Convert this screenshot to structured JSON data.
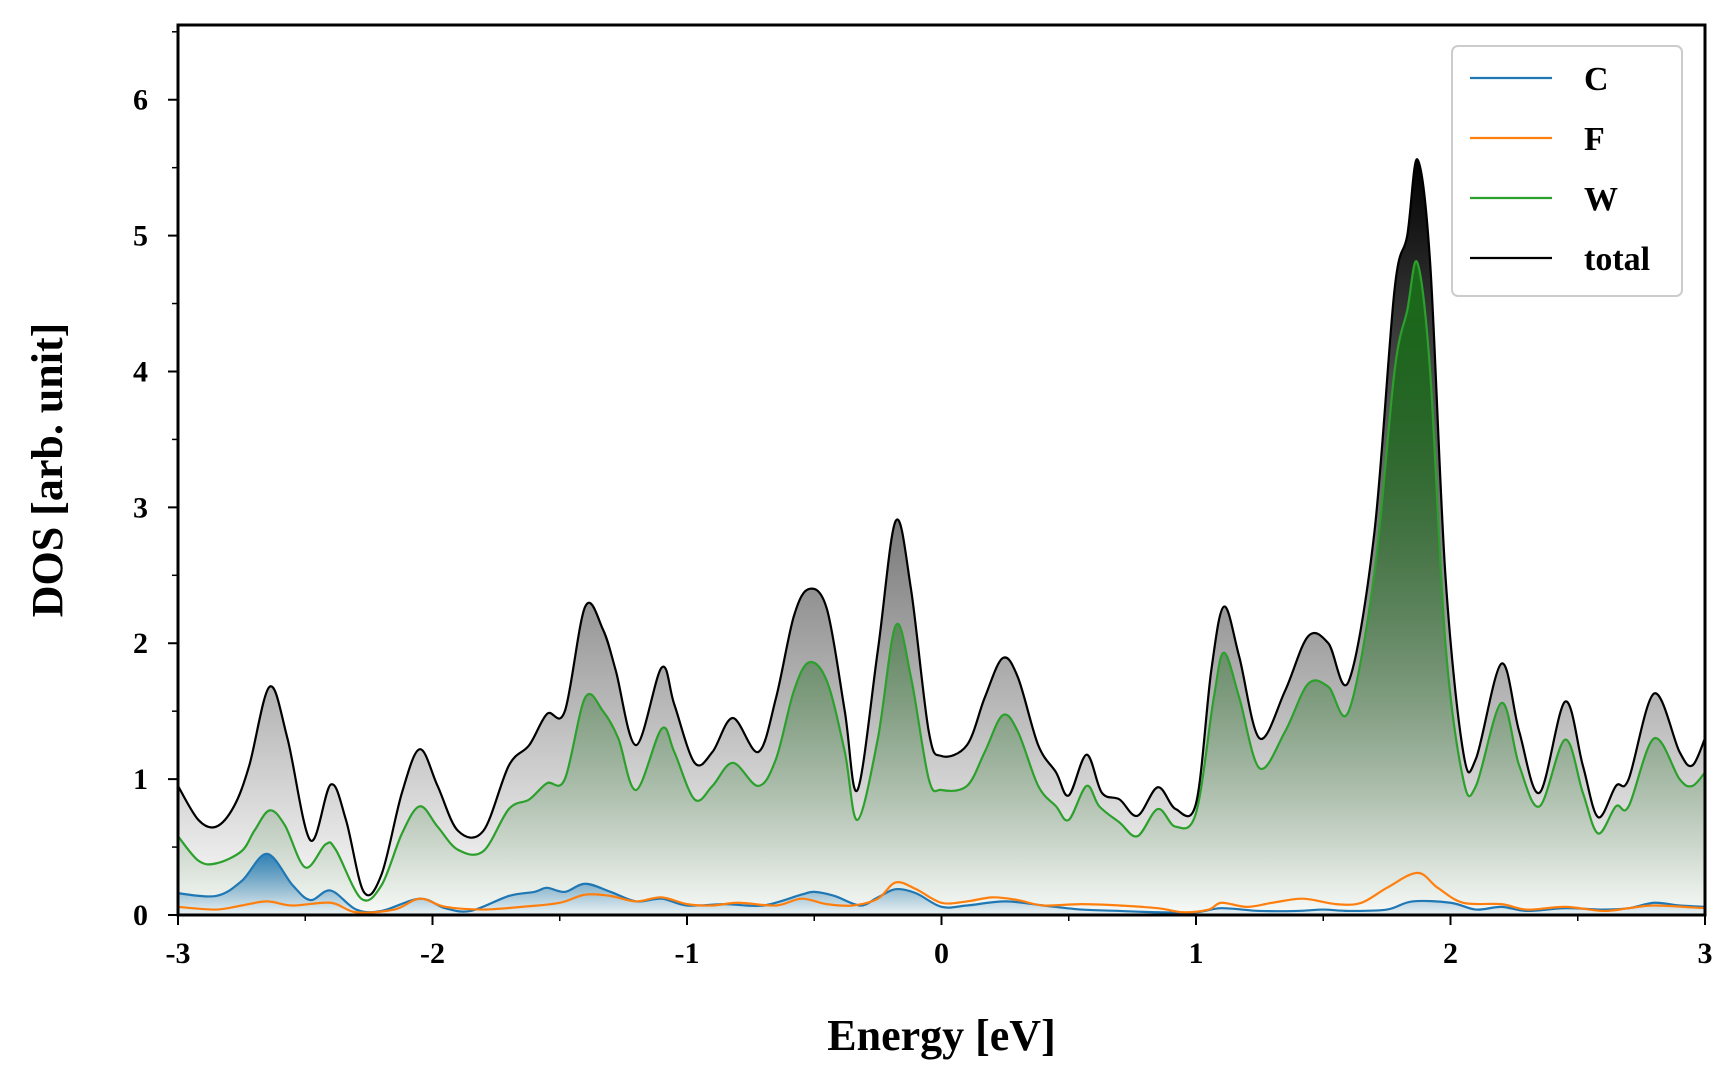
{
  "chart_data": {
    "type": "line",
    "title": "",
    "xlabel": "Energy [eV]",
    "ylabel": "DOS [arb. unit]",
    "xlim": [
      -3,
      3
    ],
    "ylim": [
      0,
      6.55
    ],
    "x_ticks": [
      -3,
      -2,
      -1,
      0,
      1,
      2,
      3
    ],
    "x_tick_labels": [
      "-3",
      "-2",
      "-1",
      "0",
      "1",
      "2",
      "3"
    ],
    "y_ticks": [
      0,
      1,
      2,
      3,
      4,
      5,
      6
    ],
    "y_tick_labels": [
      "0",
      "1",
      "2",
      "3",
      "4",
      "5",
      "6"
    ],
    "legend_position": "top-right",
    "grid": false,
    "series": [
      {
        "name": "C",
        "color": "#1f77b4",
        "fill": "gradient",
        "points": [
          [
            -3,
            0.16
          ],
          [
            -2.85,
            0.14
          ],
          [
            -2.75,
            0.25
          ],
          [
            -2.65,
            0.45
          ],
          [
            -2.55,
            0.22
          ],
          [
            -2.48,
            0.11
          ],
          [
            -2.4,
            0.18
          ],
          [
            -2.3,
            0.04
          ],
          [
            -2.2,
            0.03
          ],
          [
            -2.05,
            0.12
          ],
          [
            -1.95,
            0.05
          ],
          [
            -1.85,
            0.03
          ],
          [
            -1.7,
            0.14
          ],
          [
            -1.6,
            0.17
          ],
          [
            -1.55,
            0.2
          ],
          [
            -1.48,
            0.17
          ],
          [
            -1.4,
            0.23
          ],
          [
            -1.3,
            0.17
          ],
          [
            -1.2,
            0.1
          ],
          [
            -1.1,
            0.12
          ],
          [
            -1.0,
            0.07
          ],
          [
            -0.85,
            0.08
          ],
          [
            -0.7,
            0.07
          ],
          [
            -0.55,
            0.15
          ],
          [
            -0.5,
            0.17
          ],
          [
            -0.42,
            0.14
          ],
          [
            -0.32,
            0.07
          ],
          [
            -0.25,
            0.13
          ],
          [
            -0.18,
            0.19
          ],
          [
            -0.1,
            0.16
          ],
          [
            0.0,
            0.06
          ],
          [
            0.1,
            0.07
          ],
          [
            0.25,
            0.1
          ],
          [
            0.4,
            0.07
          ],
          [
            0.55,
            0.04
          ],
          [
            0.7,
            0.03
          ],
          [
            0.85,
            0.02
          ],
          [
            1.0,
            0.02
          ],
          [
            1.1,
            0.05
          ],
          [
            1.25,
            0.03
          ],
          [
            1.4,
            0.03
          ],
          [
            1.5,
            0.04
          ],
          [
            1.6,
            0.03
          ],
          [
            1.75,
            0.04
          ],
          [
            1.85,
            0.1
          ],
          [
            2.0,
            0.09
          ],
          [
            2.1,
            0.04
          ],
          [
            2.2,
            0.06
          ],
          [
            2.3,
            0.03
          ],
          [
            2.45,
            0.05
          ],
          [
            2.6,
            0.04
          ],
          [
            2.7,
            0.05
          ],
          [
            2.8,
            0.09
          ],
          [
            2.9,
            0.07
          ],
          [
            3.0,
            0.06
          ]
        ]
      },
      {
        "name": "F",
        "color": "#ff7f0e",
        "fill": "none",
        "points": [
          [
            -3,
            0.06
          ],
          [
            -2.85,
            0.04
          ],
          [
            -2.75,
            0.07
          ],
          [
            -2.65,
            0.1
          ],
          [
            -2.55,
            0.07
          ],
          [
            -2.4,
            0.09
          ],
          [
            -2.3,
            0.02
          ],
          [
            -2.15,
            0.04
          ],
          [
            -2.05,
            0.12
          ],
          [
            -1.95,
            0.06
          ],
          [
            -1.8,
            0.04
          ],
          [
            -1.65,
            0.06
          ],
          [
            -1.5,
            0.09
          ],
          [
            -1.4,
            0.15
          ],
          [
            -1.3,
            0.14
          ],
          [
            -1.2,
            0.1
          ],
          [
            -1.1,
            0.13
          ],
          [
            -1.0,
            0.08
          ],
          [
            -0.9,
            0.07
          ],
          [
            -0.8,
            0.09
          ],
          [
            -0.65,
            0.07
          ],
          [
            -0.55,
            0.12
          ],
          [
            -0.45,
            0.08
          ],
          [
            -0.35,
            0.07
          ],
          [
            -0.25,
            0.12
          ],
          [
            -0.18,
            0.24
          ],
          [
            -0.1,
            0.19
          ],
          [
            0.0,
            0.09
          ],
          [
            0.1,
            0.1
          ],
          [
            0.2,
            0.13
          ],
          [
            0.3,
            0.11
          ],
          [
            0.4,
            0.07
          ],
          [
            0.55,
            0.08
          ],
          [
            0.7,
            0.07
          ],
          [
            0.85,
            0.05
          ],
          [
            0.95,
            0.02
          ],
          [
            1.05,
            0.04
          ],
          [
            1.1,
            0.09
          ],
          [
            1.2,
            0.06
          ],
          [
            1.3,
            0.09
          ],
          [
            1.42,
            0.12
          ],
          [
            1.55,
            0.08
          ],
          [
            1.65,
            0.09
          ],
          [
            1.75,
            0.2
          ],
          [
            1.87,
            0.31
          ],
          [
            1.95,
            0.2
          ],
          [
            2.05,
            0.09
          ],
          [
            2.2,
            0.08
          ],
          [
            2.3,
            0.04
          ],
          [
            2.45,
            0.06
          ],
          [
            2.6,
            0.03
          ],
          [
            2.7,
            0.05
          ],
          [
            2.8,
            0.07
          ],
          [
            3.0,
            0.05
          ]
        ]
      },
      {
        "name": "W",
        "color": "#2ca02c",
        "fill": "gradient",
        "points": [
          [
            -3,
            0.58
          ],
          [
            -2.92,
            0.4
          ],
          [
            -2.85,
            0.38
          ],
          [
            -2.75,
            0.47
          ],
          [
            -2.7,
            0.62
          ],
          [
            -2.64,
            0.77
          ],
          [
            -2.58,
            0.66
          ],
          [
            -2.5,
            0.35
          ],
          [
            -2.42,
            0.52
          ],
          [
            -2.38,
            0.48
          ],
          [
            -2.28,
            0.12
          ],
          [
            -2.2,
            0.22
          ],
          [
            -2.12,
            0.6
          ],
          [
            -2.05,
            0.8
          ],
          [
            -1.98,
            0.65
          ],
          [
            -1.9,
            0.48
          ],
          [
            -1.8,
            0.47
          ],
          [
            -1.7,
            0.78
          ],
          [
            -1.62,
            0.85
          ],
          [
            -1.55,
            0.97
          ],
          [
            -1.48,
            1.0
          ],
          [
            -1.4,
            1.6
          ],
          [
            -1.33,
            1.5
          ],
          [
            -1.27,
            1.3
          ],
          [
            -1.2,
            0.92
          ],
          [
            -1.1,
            1.37
          ],
          [
            -1.05,
            1.2
          ],
          [
            -0.97,
            0.85
          ],
          [
            -0.9,
            0.95
          ],
          [
            -0.82,
            1.12
          ],
          [
            -0.72,
            0.95
          ],
          [
            -0.65,
            1.15
          ],
          [
            -0.58,
            1.65
          ],
          [
            -0.52,
            1.86
          ],
          [
            -0.45,
            1.72
          ],
          [
            -0.38,
            1.2
          ],
          [
            -0.33,
            0.7
          ],
          [
            -0.25,
            1.3
          ],
          [
            -0.18,
            2.13
          ],
          [
            -0.12,
            1.75
          ],
          [
            -0.05,
            1.0
          ],
          [
            0.0,
            0.92
          ],
          [
            0.1,
            0.95
          ],
          [
            0.17,
            1.2
          ],
          [
            0.24,
            1.47
          ],
          [
            0.3,
            1.35
          ],
          [
            0.38,
            0.95
          ],
          [
            0.45,
            0.8
          ],
          [
            0.5,
            0.7
          ],
          [
            0.57,
            0.95
          ],
          [
            0.62,
            0.8
          ],
          [
            0.7,
            0.68
          ],
          [
            0.77,
            0.58
          ],
          [
            0.85,
            0.78
          ],
          [
            0.92,
            0.65
          ],
          [
            1.0,
            0.75
          ],
          [
            1.07,
            1.6
          ],
          [
            1.11,
            1.93
          ],
          [
            1.17,
            1.6
          ],
          [
            1.25,
            1.08
          ],
          [
            1.35,
            1.35
          ],
          [
            1.44,
            1.7
          ],
          [
            1.52,
            1.68
          ],
          [
            1.6,
            1.5
          ],
          [
            1.7,
            2.5
          ],
          [
            1.78,
            4.0
          ],
          [
            1.83,
            4.45
          ],
          [
            1.87,
            4.8
          ],
          [
            1.92,
            4.0
          ],
          [
            1.98,
            2.0
          ],
          [
            2.05,
            1.0
          ],
          [
            2.1,
            0.95
          ],
          [
            2.2,
            1.56
          ],
          [
            2.27,
            1.1
          ],
          [
            2.35,
            0.8
          ],
          [
            2.45,
            1.29
          ],
          [
            2.52,
            0.9
          ],
          [
            2.58,
            0.6
          ],
          [
            2.65,
            0.8
          ],
          [
            2.7,
            0.8
          ],
          [
            2.8,
            1.3
          ],
          [
            2.9,
            1.0
          ],
          [
            2.95,
            0.95
          ],
          [
            3.0,
            1.05
          ]
        ]
      },
      {
        "name": "total",
        "color": "#000000",
        "fill": "gradient",
        "points": [
          [
            -3,
            0.95
          ],
          [
            -2.92,
            0.7
          ],
          [
            -2.85,
            0.65
          ],
          [
            -2.78,
            0.8
          ],
          [
            -2.72,
            1.1
          ],
          [
            -2.64,
            1.68
          ],
          [
            -2.57,
            1.3
          ],
          [
            -2.48,
            0.55
          ],
          [
            -2.4,
            0.96
          ],
          [
            -2.34,
            0.7
          ],
          [
            -2.27,
            0.17
          ],
          [
            -2.2,
            0.3
          ],
          [
            -2.12,
            0.9
          ],
          [
            -2.05,
            1.22
          ],
          [
            -1.98,
            0.95
          ],
          [
            -1.9,
            0.62
          ],
          [
            -1.8,
            0.62
          ],
          [
            -1.7,
            1.1
          ],
          [
            -1.62,
            1.25
          ],
          [
            -1.55,
            1.48
          ],
          [
            -1.48,
            1.5
          ],
          [
            -1.4,
            2.27
          ],
          [
            -1.33,
            2.1
          ],
          [
            -1.28,
            1.8
          ],
          [
            -1.2,
            1.25
          ],
          [
            -1.1,
            1.82
          ],
          [
            -1.05,
            1.55
          ],
          [
            -0.97,
            1.12
          ],
          [
            -0.9,
            1.2
          ],
          [
            -0.82,
            1.45
          ],
          [
            -0.72,
            1.2
          ],
          [
            -0.65,
            1.6
          ],
          [
            -0.58,
            2.2
          ],
          [
            -0.52,
            2.4
          ],
          [
            -0.45,
            2.25
          ],
          [
            -0.38,
            1.5
          ],
          [
            -0.33,
            0.92
          ],
          [
            -0.25,
            1.95
          ],
          [
            -0.18,
            2.9
          ],
          [
            -0.12,
            2.4
          ],
          [
            -0.05,
            1.35
          ],
          [
            0.0,
            1.17
          ],
          [
            0.1,
            1.25
          ],
          [
            0.17,
            1.6
          ],
          [
            0.24,
            1.89
          ],
          [
            0.3,
            1.75
          ],
          [
            0.38,
            1.25
          ],
          [
            0.45,
            1.05
          ],
          [
            0.5,
            0.88
          ],
          [
            0.57,
            1.18
          ],
          [
            0.63,
            0.9
          ],
          [
            0.7,
            0.85
          ],
          [
            0.77,
            0.73
          ],
          [
            0.85,
            0.94
          ],
          [
            0.92,
            0.78
          ],
          [
            1.0,
            0.82
          ],
          [
            1.06,
            1.8
          ],
          [
            1.11,
            2.27
          ],
          [
            1.17,
            1.9
          ],
          [
            1.25,
            1.3
          ],
          [
            1.35,
            1.65
          ],
          [
            1.44,
            2.05
          ],
          [
            1.52,
            2.0
          ],
          [
            1.6,
            1.72
          ],
          [
            1.7,
            2.8
          ],
          [
            1.78,
            4.6
          ],
          [
            1.83,
            5.0
          ],
          [
            1.87,
            5.56
          ],
          [
            1.92,
            4.8
          ],
          [
            1.98,
            2.5
          ],
          [
            2.05,
            1.2
          ],
          [
            2.1,
            1.15
          ],
          [
            2.2,
            1.85
          ],
          [
            2.27,
            1.35
          ],
          [
            2.35,
            0.9
          ],
          [
            2.45,
            1.57
          ],
          [
            2.52,
            1.1
          ],
          [
            2.58,
            0.72
          ],
          [
            2.65,
            0.95
          ],
          [
            2.7,
            1.0
          ],
          [
            2.8,
            1.63
          ],
          [
            2.9,
            1.2
          ],
          [
            2.95,
            1.1
          ],
          [
            3.0,
            1.3
          ]
        ]
      }
    ]
  }
}
